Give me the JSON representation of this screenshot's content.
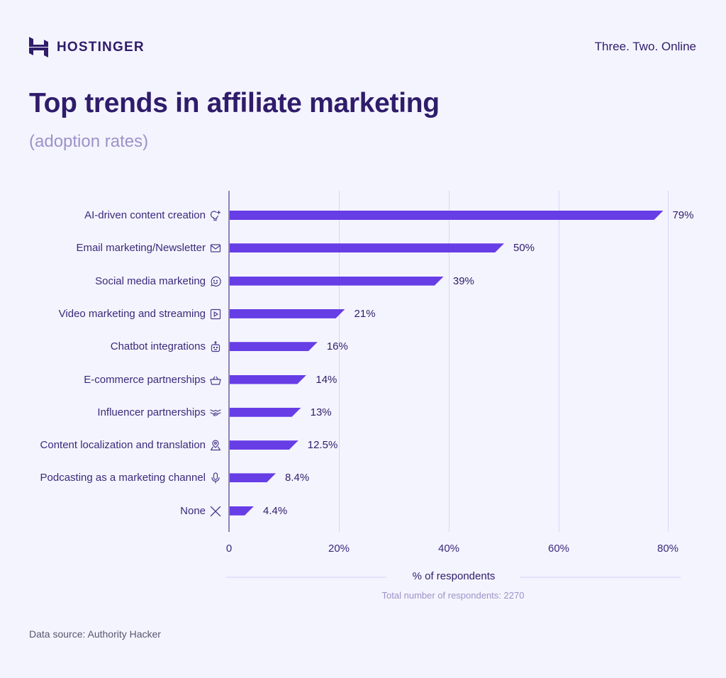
{
  "header": {
    "brand": "HOSTINGER",
    "tagline": "Three. Two. Online"
  },
  "title": "Top trends in affiliate marketing",
  "subtitle": "(adoption rates)",
  "axis": {
    "ticks": [
      "0",
      "20%",
      "40%",
      "60%",
      "80%"
    ],
    "xlabel": "% of respondents",
    "note": "Total number of respondents: 2270"
  },
  "footer": {
    "source": "Data source: Authority Hacker"
  },
  "colors": {
    "bar": "#673de6",
    "text": "#2f1c6a",
    "muted": "#9d92c8",
    "background": "#f4f4fe",
    "gridline": "#d5d5fa"
  },
  "rows": [
    {
      "label": "AI-driven content creation",
      "icon": "lightbulb-sparkle-icon",
      "value": 79,
      "value_label": "79%"
    },
    {
      "label": "Email marketing/Newsletter",
      "icon": "envelope-icon",
      "value": 50,
      "value_label": "50%"
    },
    {
      "label": "Social media marketing",
      "icon": "smiley-chat-icon",
      "value": 39,
      "value_label": "39%"
    },
    {
      "label": "Video marketing and streaming",
      "icon": "play-square-icon",
      "value": 21,
      "value_label": "21%"
    },
    {
      "label": "Chatbot integrations",
      "icon": "robot-icon",
      "value": 16,
      "value_label": "16%"
    },
    {
      "label": "E-commerce partnerships",
      "icon": "basket-icon",
      "value": 14,
      "value_label": "14%"
    },
    {
      "label": "Influencer partnerships",
      "icon": "handshake-icon",
      "value": 13,
      "value_label": "13%"
    },
    {
      "label": "Content localization and translation",
      "icon": "location-pin-icon",
      "value": 12.5,
      "value_label": "12.5%"
    },
    {
      "label": "Podcasting as a marketing channel",
      "icon": "microphone-icon",
      "value": 8.4,
      "value_label": "8.4%"
    },
    {
      "label": "None",
      "icon": "x-icon",
      "value": 4.4,
      "value_label": "4.4%"
    }
  ],
  "chart_data": {
    "type": "bar",
    "orientation": "horizontal",
    "title": "Top trends in affiliate marketing",
    "subtitle": "(adoption rates)",
    "categories": [
      "AI-driven content creation",
      "Email marketing/Newsletter",
      "Social media marketing",
      "Video marketing and streaming",
      "Chatbot integrations",
      "E-commerce partnerships",
      "Influencer partnerships",
      "Content localization and translation",
      "Podcasting as a marketing channel",
      "None"
    ],
    "values": [
      79,
      50,
      39,
      21,
      16,
      14,
      13,
      12.5,
      8.4,
      4.4
    ],
    "data_labels": [
      "79%",
      "50%",
      "39%",
      "21%",
      "16%",
      "14%",
      "13%",
      "12.5%",
      "8.4%",
      "4.4%"
    ],
    "xlabel": "% of respondents",
    "ylabel": "",
    "xlim": [
      0,
      80
    ],
    "xticks": [
      "0",
      "20%",
      "40%",
      "60%",
      "80%"
    ],
    "grid": "vertical",
    "legend": null,
    "annotations": [
      "Total number of respondents: 2270",
      "Data source: Authority Hacker"
    ]
  }
}
